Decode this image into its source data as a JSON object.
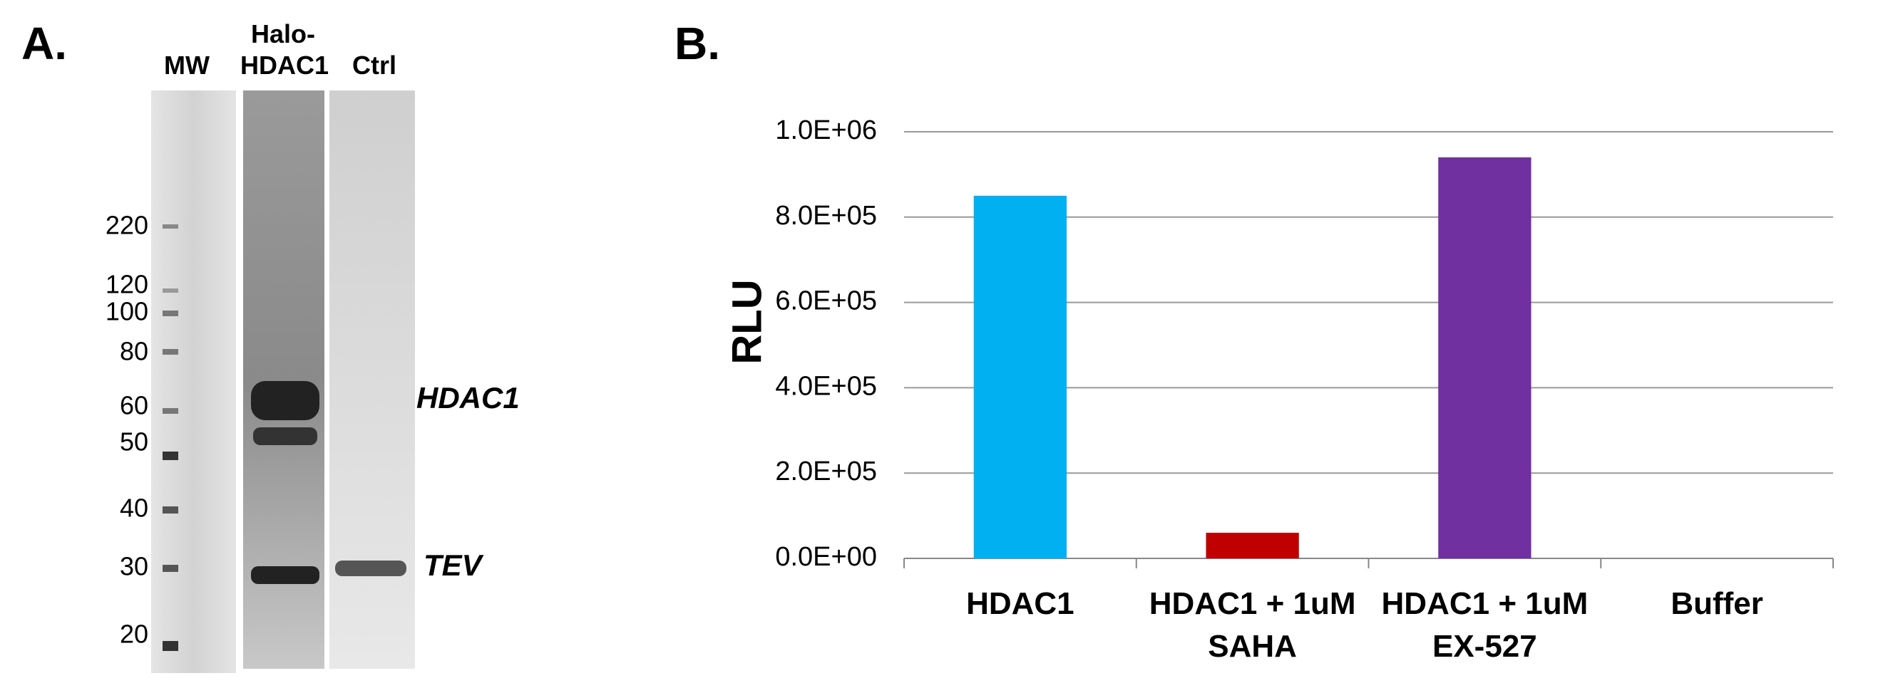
{
  "panel_a": {
    "label": "A.",
    "lanes": [
      "MW",
      "Halo-HDAC1",
      "Ctrl"
    ],
    "mw_markers": [
      "220",
      "120",
      "100",
      "80",
      "60",
      "50",
      "40",
      "30",
      "20"
    ],
    "band_labels": [
      "HDAC1",
      "TEV"
    ]
  },
  "chart_data": {
    "type": "bar",
    "panel_label": "B.",
    "y_label": "RLU",
    "categories": [
      "HDAC1",
      "HDAC1 + 1uM SAHA",
      "HDAC1 + 1uM EX-527",
      "Buffer"
    ],
    "values": [
      850000,
      60000,
      940000,
      0
    ],
    "colors": [
      "#00b0f0",
      "#c00000",
      "#7030a0",
      "#00b050"
    ],
    "ylim": [
      0,
      1000000
    ],
    "yticks": [
      {
        "value": 0,
        "label": "0.0E+00"
      },
      {
        "value": 200000,
        "label": "2.0E+05"
      },
      {
        "value": 400000,
        "label": "4.0E+05"
      },
      {
        "value": 600000,
        "label": "6.0E+05"
      },
      {
        "value": 800000,
        "label": "8.0E+05"
      },
      {
        "value": 1000000,
        "label": "1.0E+06"
      }
    ],
    "grid": true
  }
}
